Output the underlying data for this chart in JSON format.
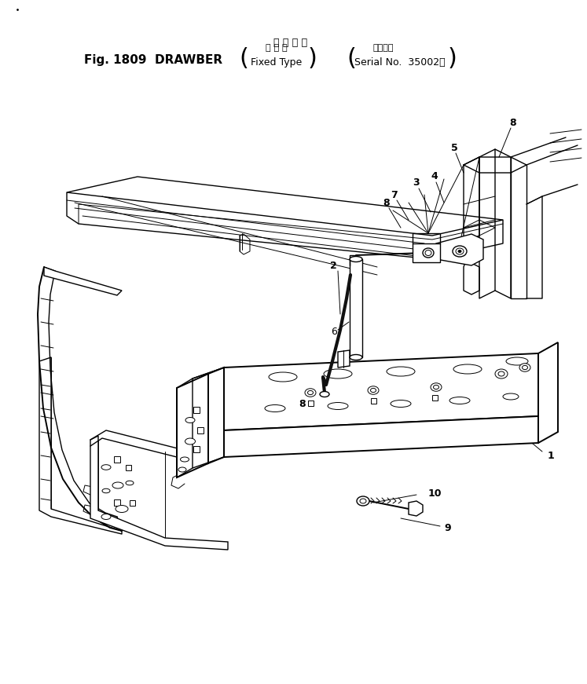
{
  "title_jp": "ド ロ ー バ",
  "title_main": "Fig. 1809  DRAWBER",
  "bracket1_jp": "固 定 式",
  "bracket1_en": "Fixed Type",
  "bracket2_jp": "適用号機",
  "bracket2_en": "Serial No.  35002～",
  "bg_color": "#ffffff",
  "lc": "#000000",
  "fig_width": 7.47,
  "fig_height": 8.71,
  "dpi": 100
}
